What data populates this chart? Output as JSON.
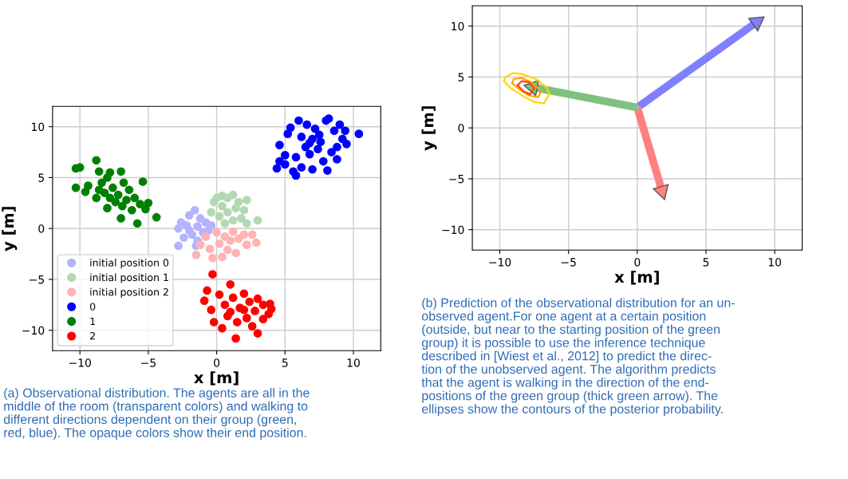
{
  "chart_data": [
    {
      "type": "scatter",
      "xlabel": "x [m]",
      "ylabel": "y [m]",
      "xlim": [
        -12,
        12
      ],
      "ylim": [
        -12,
        12
      ],
      "xticks": [
        -10,
        -5,
        0,
        5,
        10
      ],
      "yticks": [
        -10,
        -5,
        0,
        5,
        10
      ],
      "grid": true,
      "legend": "bottom left",
      "marker": "circle",
      "series": [
        {
          "name": "initial position 0",
          "color": "#b3b3ff",
          "x": [
            -2.8,
            -2.8,
            -2.6,
            -2.4,
            -2.2,
            -2.0,
            -1.8,
            -1.6,
            -1.4,
            -1.4,
            -1.2,
            -1.0,
            -0.8,
            -0.6,
            -0.4,
            -1.5,
            -2.0
          ],
          "values": [
            0.0,
            -1.7,
            0.6,
            -0.9,
            0.3,
            1.3,
            -0.6,
            1.8,
            0.2,
            -1.2,
            1.0,
            -0.4,
            0.6,
            -0.2,
            0.3,
            -1.7,
            -0.2
          ]
        },
        {
          "name": "initial position 1",
          "color": "#b3d9b3",
          "x": [
            -0.4,
            -0.2,
            0.0,
            0.2,
            0.4,
            0.6,
            0.8,
            0.8,
            1.2,
            1.2,
            1.4,
            1.6,
            1.8,
            2.0,
            2.2,
            2.2,
            3.0,
            0.4
          ],
          "values": [
            1.6,
            2.6,
            3.0,
            1.2,
            2.2,
            0.5,
            3.0,
            1.6,
            3.3,
            0.8,
            2.0,
            2.6,
            1.0,
            1.8,
            2.8,
            0.5,
            0.8,
            3.2
          ]
        },
        {
          "name": "initial position 2",
          "color": "#ffb3b3",
          "x": [
            -1.5,
            -1.2,
            -0.8,
            -0.5,
            -0.3,
            0.0,
            0.2,
            0.4,
            0.6,
            0.8,
            1.0,
            1.2,
            1.4,
            1.6,
            2.0,
            2.2,
            2.6,
            2.9
          ],
          "values": [
            -2.6,
            -1.6,
            -0.8,
            -2.0,
            -2.9,
            -0.4,
            -1.5,
            -2.8,
            -0.8,
            -2.1,
            -1.2,
            -0.3,
            -2.4,
            -1.0,
            -0.6,
            -1.6,
            -0.6,
            -1.4
          ]
        },
        {
          "name": "0",
          "color": "#0000ff",
          "x": [
            4.4,
            4.6,
            4.6,
            5.0,
            5.0,
            5.2,
            5.4,
            5.6,
            5.8,
            5.8,
            6.0,
            6.2,
            6.2,
            6.5,
            6.6,
            6.8,
            7.0,
            7.0,
            7.2,
            7.4,
            7.6,
            7.8,
            8.0,
            8.1,
            8.2,
            8.4,
            8.6,
            8.8,
            8.8,
            9.0,
            9.2,
            9.4,
            9.5,
            10.4,
            7.5,
            6.8
          ],
          "values": [
            5.9,
            6.6,
            8.2,
            6.3,
            7.2,
            9.3,
            9.9,
            5.6,
            5.2,
            7.0,
            10.6,
            9.0,
            6.0,
            8.0,
            10.2,
            7.3,
            8.8,
            5.8,
            9.8,
            7.8,
            8.5,
            6.6,
            10.6,
            5.7,
            10.8,
            7.5,
            9.6,
            8.0,
            6.8,
            10.2,
            8.8,
            9.6,
            8.3,
            9.3,
            9.2,
            8.4
          ]
        },
        {
          "name": "1",
          "color": "#008000",
          "x": [
            -10.3,
            -10.0,
            -10.3,
            -9.6,
            -9.4,
            -8.8,
            -8.8,
            -8.6,
            -8.4,
            -8.2,
            -8.0,
            -8.0,
            -7.8,
            -7.6,
            -7.4,
            -7.2,
            -7.0,
            -7.0,
            -6.8,
            -6.6,
            -6.4,
            -6.2,
            -6.0,
            -5.8,
            -5.6,
            -5.4,
            -5.2,
            -5.0,
            -4.4,
            -7.8,
            -8.6,
            -6.9
          ],
          "values": [
            5.9,
            6.0,
            4.0,
            3.6,
            4.2,
            6.7,
            3.0,
            5.6,
            4.5,
            3.5,
            5.0,
            2.0,
            5.5,
            4.0,
            2.6,
            3.3,
            5.6,
            1.0,
            4.5,
            2.8,
            3.8,
            1.8,
            3.0,
            0.5,
            2.4,
            4.6,
            1.9,
            2.5,
            1.1,
            3.0,
            3.8,
            2.2
          ]
        },
        {
          "name": "2",
          "color": "#ff0000",
          "x": [
            -0.3,
            1.0,
            -0.7,
            -0.9,
            -0.4,
            -0.2,
            0.2,
            0.4,
            0.6,
            0.8,
            1.2,
            1.4,
            1.5,
            1.7,
            2.0,
            2.2,
            2.4,
            2.6,
            2.8,
            3.0,
            3.0,
            3.4,
            3.4,
            3.8,
            4.0,
            3.9,
            1.0,
            2.0
          ],
          "values": [
            -4.5,
            -5.5,
            -6.1,
            -7.1,
            -8.0,
            -9.2,
            -6.5,
            -9.8,
            -7.5,
            -8.6,
            -6.8,
            -10.8,
            -9.2,
            -7.8,
            -6.4,
            -8.8,
            -7.2,
            -9.6,
            -8.1,
            -10.3,
            -6.9,
            -7.5,
            -8.9,
            -8.4,
            -7.9,
            -7.4,
            -8.2,
            -8.0
          ]
        }
      ],
      "annotations": [
        "(a) Observational distribution. The agents are all in the\nmiddle of the room (transparent colors) and walking to\ndifferent directions dependent on their group (green,\nred, blue). The opaque colors show their end position."
      ]
    },
    {
      "type": "line",
      "xlabel": "x [m]",
      "ylabel": "y [m]",
      "xlim": [
        -12,
        12
      ],
      "ylim": [
        -12,
        12
      ],
      "xticks": [
        -10,
        -5,
        0,
        5,
        10
      ],
      "yticks": [
        -10,
        -5,
        0,
        5,
        10
      ],
      "grid": true,
      "marker": "none",
      "series": [
        {
          "type": "line",
          "marker": "triangle",
          "color": "#8080ff",
          "x": [
            0.1,
            8.7
          ],
          "values": [
            2.1,
            10.4
          ]
        },
        {
          "type": "line",
          "marker": "triangle",
          "color": "#ff8080",
          "x": [
            0.0,
            1.8
          ],
          "values": [
            2.0,
            -6.2
          ]
        },
        {
          "type": "line",
          "marker": "triangle",
          "color": "#80c080",
          "x": [
            0.0,
            -7.6
          ],
          "values": [
            2.0,
            4.0
          ]
        },
        {
          "type": "line",
          "color": "#ffd700",
          "x": [
            -9.7,
            -9.6,
            -9.0,
            -8.4,
            -7.4,
            -6.6,
            -6.4
          ],
          "values": [
            4.6,
            5.0,
            5.4,
            5.3,
            4.8,
            4.0,
            3.3
          ]
        },
        {
          "type": "line",
          "color": "#ffd700",
          "x": [
            -9.7,
            -9.2,
            -8.4,
            -7.6,
            -6.8,
            -6.4
          ],
          "values": [
            4.6,
            3.9,
            3.2,
            2.6,
            2.4,
            3.3
          ]
        },
        {
          "type": "line",
          "color": "#ffa500",
          "x": [
            -9.1,
            -9.0,
            -8.4,
            -7.6,
            -7.0
          ],
          "values": [
            4.4,
            4.8,
            4.9,
            4.4,
            3.6
          ]
        },
        {
          "type": "line",
          "color": "#ffa500",
          "x": [
            -9.1,
            -8.6,
            -7.9,
            -7.2,
            -7.0
          ],
          "values": [
            4.4,
            3.8,
            3.2,
            3.0,
            3.6
          ]
        },
        {
          "type": "line",
          "color": "#ff4500",
          "x": [
            -8.7,
            -8.4,
            -7.9,
            -7.5
          ],
          "values": [
            4.2,
            4.6,
            4.5,
            3.9
          ]
        },
        {
          "type": "line",
          "color": "#ff4500",
          "x": [
            -8.7,
            -8.3,
            -7.8,
            -7.5
          ],
          "values": [
            4.2,
            3.6,
            3.3,
            3.9
          ]
        }
      ],
      "annotations": [
        "(b) Prediction of the observational distribution for an un-\nobserved agent.For one agent at a certain position\n(outside, but near to the starting position of the green\ngroup) it is possible to use the inference technique\ndescribed in [Wiest et al., 2012] to predict the direc-\ntion of the unobserved agent. The algorithm predicts\nthat the agent is walking in the direction of the end-\npositions of the green group (thick green arrow). The\nellipses show the contours of the posterior probability."
      ]
    }
  ]
}
